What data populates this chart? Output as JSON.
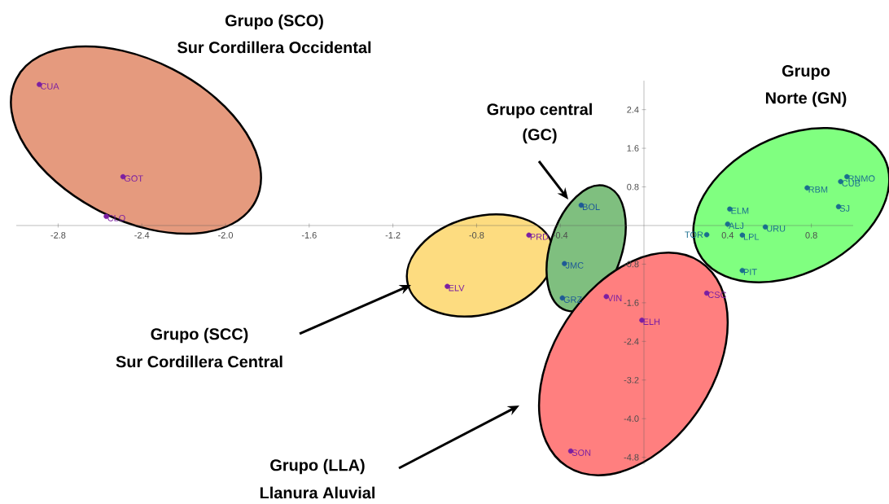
{
  "chart_data": {
    "type": "scatter",
    "marker": "circle",
    "xlim": [
      -3.0,
      1.0
    ],
    "ylim": [
      -4.95,
      3.0
    ],
    "xticks": [
      {
        "value": -2.8,
        "label": "-2.8"
      },
      {
        "value": -2.4,
        "label": "-2.4"
      },
      {
        "value": -2.0,
        "label": "-2.0"
      },
      {
        "value": -1.6,
        "label": "-1.6"
      },
      {
        "value": -1.2,
        "label": "-1.2"
      },
      {
        "value": -0.8,
        "label": "-0.8"
      },
      {
        "value": -0.4,
        "label": "-0.4"
      },
      {
        "value": 0.4,
        "label": "0.4"
      },
      {
        "value": 0.8,
        "label": "0.8"
      }
    ],
    "yticks": [
      {
        "value": 2.4,
        "label": "2.4"
      },
      {
        "value": 1.6,
        "label": "1.6"
      },
      {
        "value": 0.8,
        "label": "0.8"
      },
      {
        "value": -0.8,
        "label": "-0.8"
      },
      {
        "value": -1.6,
        "label": "-1.6"
      },
      {
        "value": -2.4,
        "label": "-2.4"
      },
      {
        "value": -3.2,
        "label": "-3.2"
      },
      {
        "value": -4.0,
        "label": "-4.0"
      },
      {
        "value": -4.8,
        "label": "-4.8"
      }
    ],
    "annotations": [
      "Grupo (SCO)",
      "Sur Cordillera Occidental",
      "Grupo central",
      "(GC)",
      "Grupo",
      "Norte (GN)",
      "Grupo (SCC)",
      "Sur Cordillera Central",
      "Grupo (LLA)",
      "Llanura Aluvial"
    ],
    "series": [
      {
        "color": "#7b1fa2",
        "x": [
          -2.89,
          -2.49,
          -2.57
        ],
        "values": [
          2.92,
          1.01,
          0.19
        ],
        "value_labels": [
          "CUA",
          "GOT",
          "CLO"
        ]
      },
      {
        "color": "#7b1fa2",
        "x": [
          -0.55,
          -0.94
        ],
        "values": [
          -0.2,
          -1.26
        ],
        "value_labels": [
          "PRD",
          "ELV"
        ]
      },
      {
        "color": "#1f5a96",
        "x": [
          -0.3,
          -0.38,
          -0.39
        ],
        "values": [
          0.42,
          -0.79,
          -1.5
        ],
        "value_labels": [
          "BOL",
          "JMC",
          "GRZ"
        ]
      },
      {
        "color": "#7b1fa2",
        "x": [
          -0.18,
          -0.01,
          0.3,
          -0.35
        ],
        "values": [
          -1.47,
          -1.96,
          -1.4,
          -4.67
        ],
        "value_labels": [
          "VIN",
          "ELH",
          "CSC",
          "SON"
        ]
      },
      {
        "color": "#1a6e8e",
        "x": [
          0.41,
          0.4,
          0.3,
          0.47,
          0.58,
          0.47,
          0.78,
          0.94,
          0.97,
          0.93
        ],
        "values": [
          0.34,
          0.03,
          -0.19,
          -0.2,
          -0.03,
          -0.93,
          0.78,
          0.91,
          1.01,
          0.39
        ],
        "value_labels": [
          "ELM",
          "ALJ",
          "TOR",
          "LPL",
          "URU",
          "PIT",
          "RBM",
          "CUB",
          "RNMO",
          "SJ"
        ]
      }
    ]
  }
}
